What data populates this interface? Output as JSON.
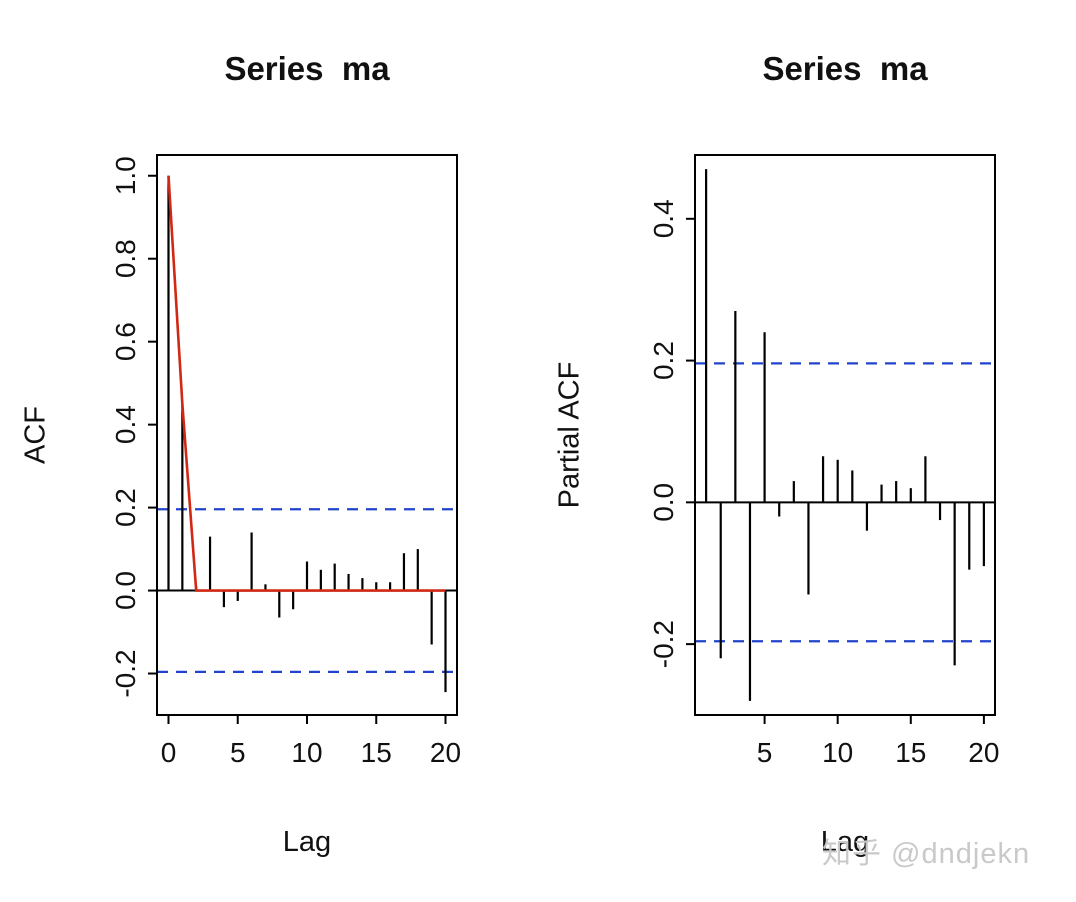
{
  "page": {
    "background": "#ffffff",
    "watermark": "知乎 @dndjekn"
  },
  "chart_data": [
    {
      "type": "bar",
      "subtype": "acf-stem-plot",
      "title": "Series  ma",
      "xlabel": "Lag",
      "ylabel": "ACF",
      "xlim": [
        -0.83,
        20.83
      ],
      "ylim": [
        -0.3,
        1.05
      ],
      "xtick_values": [
        0,
        5,
        10,
        15,
        20
      ],
      "xtick_labels": [
        "0",
        "5",
        "10",
        "15",
        "20"
      ],
      "ytick_values": [
        -0.2,
        0.0,
        0.2,
        0.4,
        0.6,
        0.8,
        1.0
      ],
      "ytick_labels": [
        "-0.2",
        "0.0",
        "0.2",
        "0.4",
        "0.6",
        "0.8",
        "1.0"
      ],
      "grid": "off",
      "legend": "none",
      "conf_bounds": [
        0.196,
        -0.196
      ],
      "conf_color": "#2244cc",
      "conf_style": "dashed",
      "lags": [
        0,
        1,
        2,
        3,
        4,
        5,
        6,
        7,
        8,
        9,
        10,
        11,
        12,
        13,
        14,
        15,
        16,
        17,
        18,
        19,
        20
      ],
      "values": [
        1.0,
        0.45,
        0.01,
        0.13,
        -0.04,
        -0.025,
        0.14,
        0.015,
        -0.065,
        -0.045,
        0.07,
        0.05,
        0.065,
        0.04,
        0.03,
        0.02,
        0.02,
        0.09,
        0.1,
        -0.13,
        -0.245
      ],
      "overlay_line": {
        "name": "theoretical-acf",
        "color": "#d02814",
        "points": [
          [
            0,
            1.0
          ],
          [
            1,
            0.45
          ],
          [
            2,
            0.0
          ],
          [
            20,
            0.0
          ]
        ]
      }
    },
    {
      "type": "bar",
      "subtype": "acf-stem-plot",
      "title": "Series  ma",
      "xlabel": "Lag",
      "ylabel": "Partial ACF",
      "xlim": [
        0.24,
        20.76
      ],
      "ylim": [
        -0.3,
        0.49
      ],
      "xtick_values": [
        5,
        10,
        15,
        20
      ],
      "xtick_labels": [
        "5",
        "10",
        "15",
        "20"
      ],
      "ytick_values": [
        -0.2,
        0.0,
        0.2,
        0.4
      ],
      "ytick_labels": [
        "-0.2",
        "0.0",
        "0.2",
        "0.4"
      ],
      "grid": "off",
      "legend": "none",
      "conf_bounds": [
        0.196,
        -0.196
      ],
      "conf_color": "#2244cc",
      "conf_style": "dashed",
      "lags": [
        1,
        2,
        3,
        4,
        5,
        6,
        7,
        8,
        9,
        10,
        11,
        12,
        13,
        14,
        15,
        16,
        17,
        18,
        19,
        20
      ],
      "values": [
        0.47,
        -0.22,
        0.27,
        -0.28,
        0.24,
        -0.02,
        0.03,
        -0.13,
        0.065,
        0.06,
        0.045,
        -0.04,
        0.025,
        0.03,
        0.02,
        0.065,
        -0.025,
        -0.23,
        -0.095,
        -0.09
      ],
      "overlay_line": null
    }
  ]
}
